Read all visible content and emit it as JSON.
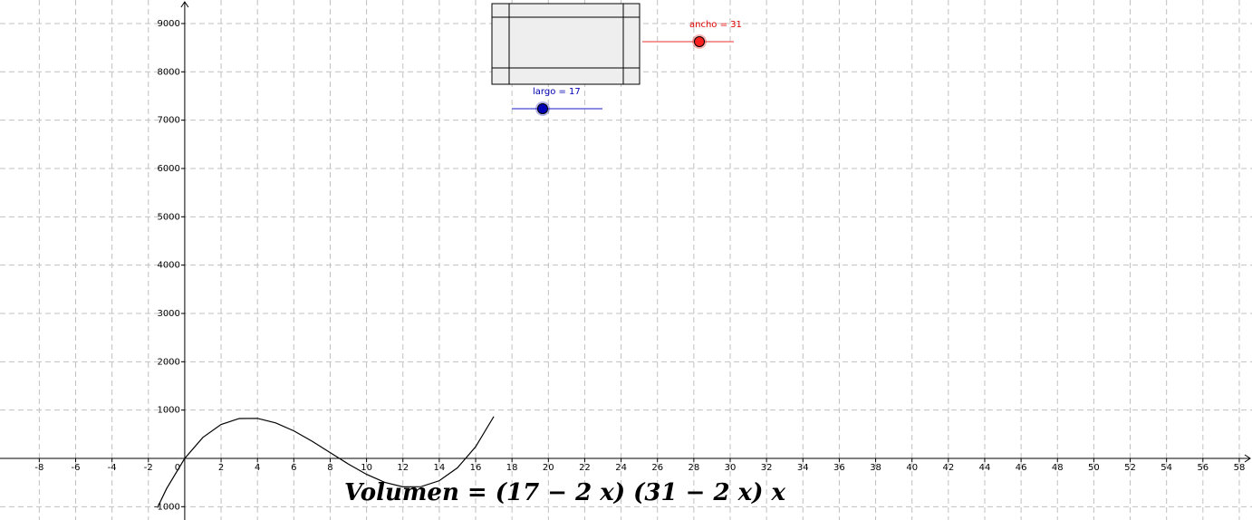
{
  "chart_data": {
    "type": "line",
    "x": [
      -1.5,
      -1,
      0,
      1,
      2,
      3,
      4,
      5,
      6,
      7,
      8,
      9,
      10,
      11,
      12,
      13,
      14,
      15,
      16,
      17
    ],
    "values": [
      -1020,
      -627,
      0,
      435,
      702,
      825,
      828,
      735,
      570,
      357,
      120,
      -117,
      -330,
      -495,
      -588,
      -585,
      -462,
      -195,
      240,
      867
    ],
    "color": "#000000",
    "xlim": [
      -10.16,
      58.7
    ],
    "ylim": [
      -1275,
      9487
    ],
    "xticks": [
      -8,
      -6,
      -4,
      -2,
      0,
      2,
      4,
      6,
      8,
      10,
      12,
      14,
      16,
      18,
      20,
      22,
      24,
      26,
      28,
      30,
      32,
      34,
      36,
      38,
      40,
      42,
      44,
      46,
      48,
      50,
      52,
      54,
      56,
      58
    ],
    "yticks": [
      -1000,
      1000,
      2000,
      3000,
      4000,
      5000,
      6000,
      7000,
      8000,
      9000
    ],
    "grid": true
  },
  "sliders": [
    {
      "label": "largo = 17",
      "color": "#0000b4"
    },
    {
      "label": "ancho = 31",
      "color": "#e00000"
    }
  ],
  "formula": "Volumen = (17 − 2 x) (31 − 2 x) x"
}
